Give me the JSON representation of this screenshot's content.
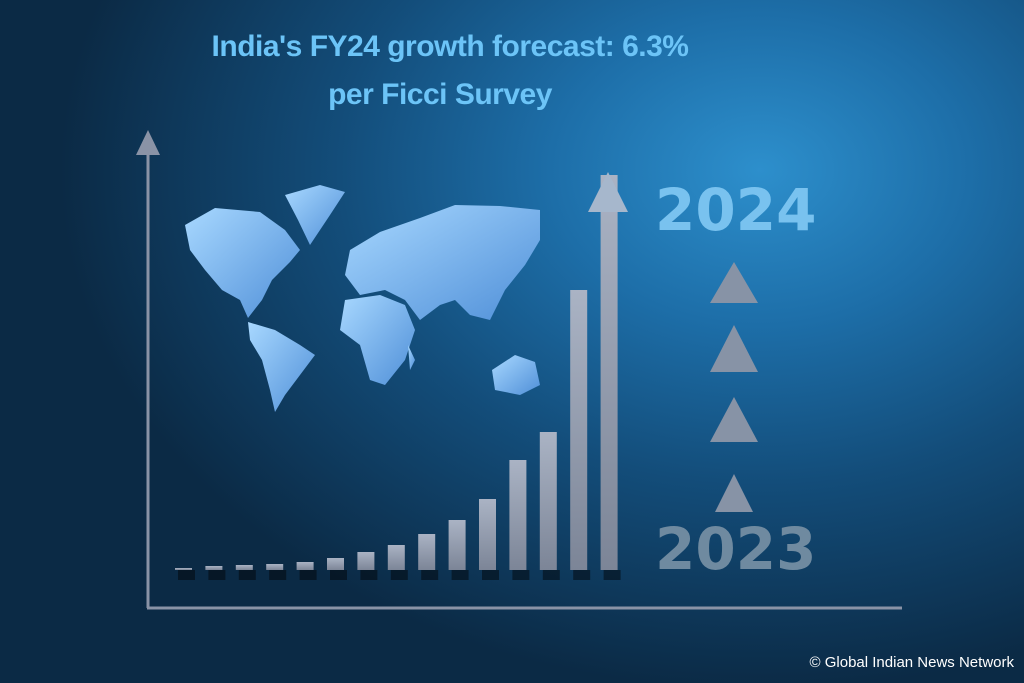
{
  "title": {
    "line1": "India's FY24 growth forecast: 6.3%",
    "line2": "per Ficci Survey"
  },
  "years": {
    "top": "2024",
    "bottom": "2023"
  },
  "bars": [
    2,
    4,
    5,
    6,
    8,
    12,
    18,
    25,
    36,
    50,
    71,
    110,
    138,
    280,
    395
  ],
  "credit": "© Global Indian News Network",
  "colors": {
    "title": "#6cc4f7",
    "bar": "#8a93a6",
    "map": "#7ab8ef"
  }
}
